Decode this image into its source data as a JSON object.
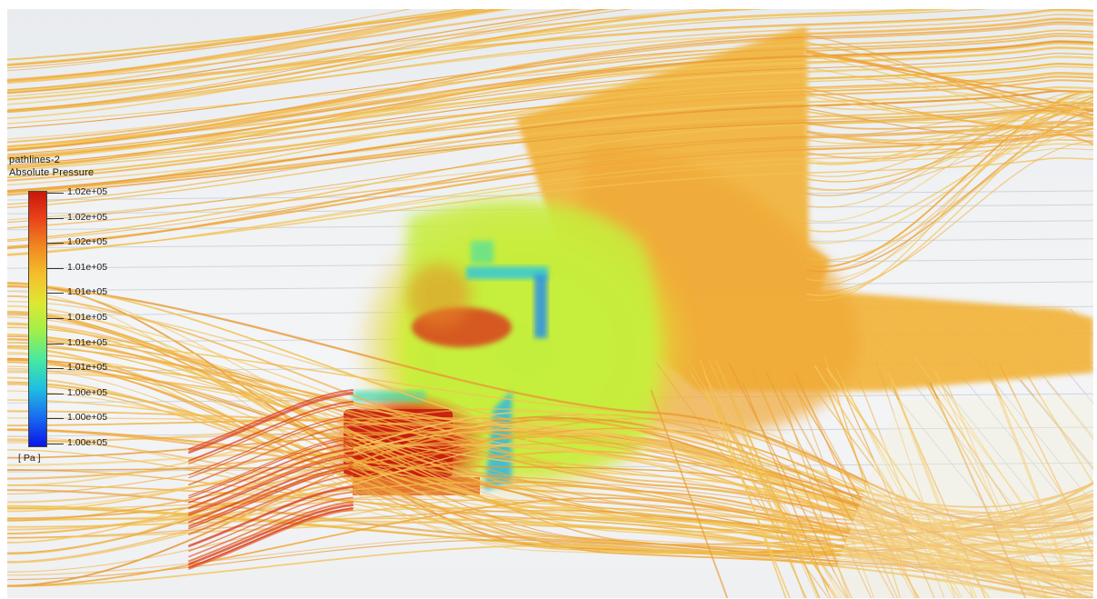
{
  "legend": {
    "title": "pathlines-2",
    "variable": "Absolute Pressure",
    "unit": "[ Pa ]",
    "tick_labels": [
      "1.02e+05",
      "1.02e+05",
      "1.02e+05",
      "1.01e+05",
      "1.01e+05",
      "1.01e+05",
      "1.01e+05",
      "1.01e+05",
      "1.00e+05",
      "1.00e+05",
      "1.00e+05"
    ]
  },
  "colors": {
    "pathline": "#f0b43c",
    "high": "#c8160c",
    "mid": "#dde832",
    "low": "#0a14e8",
    "background": "#eef0f2"
  }
}
